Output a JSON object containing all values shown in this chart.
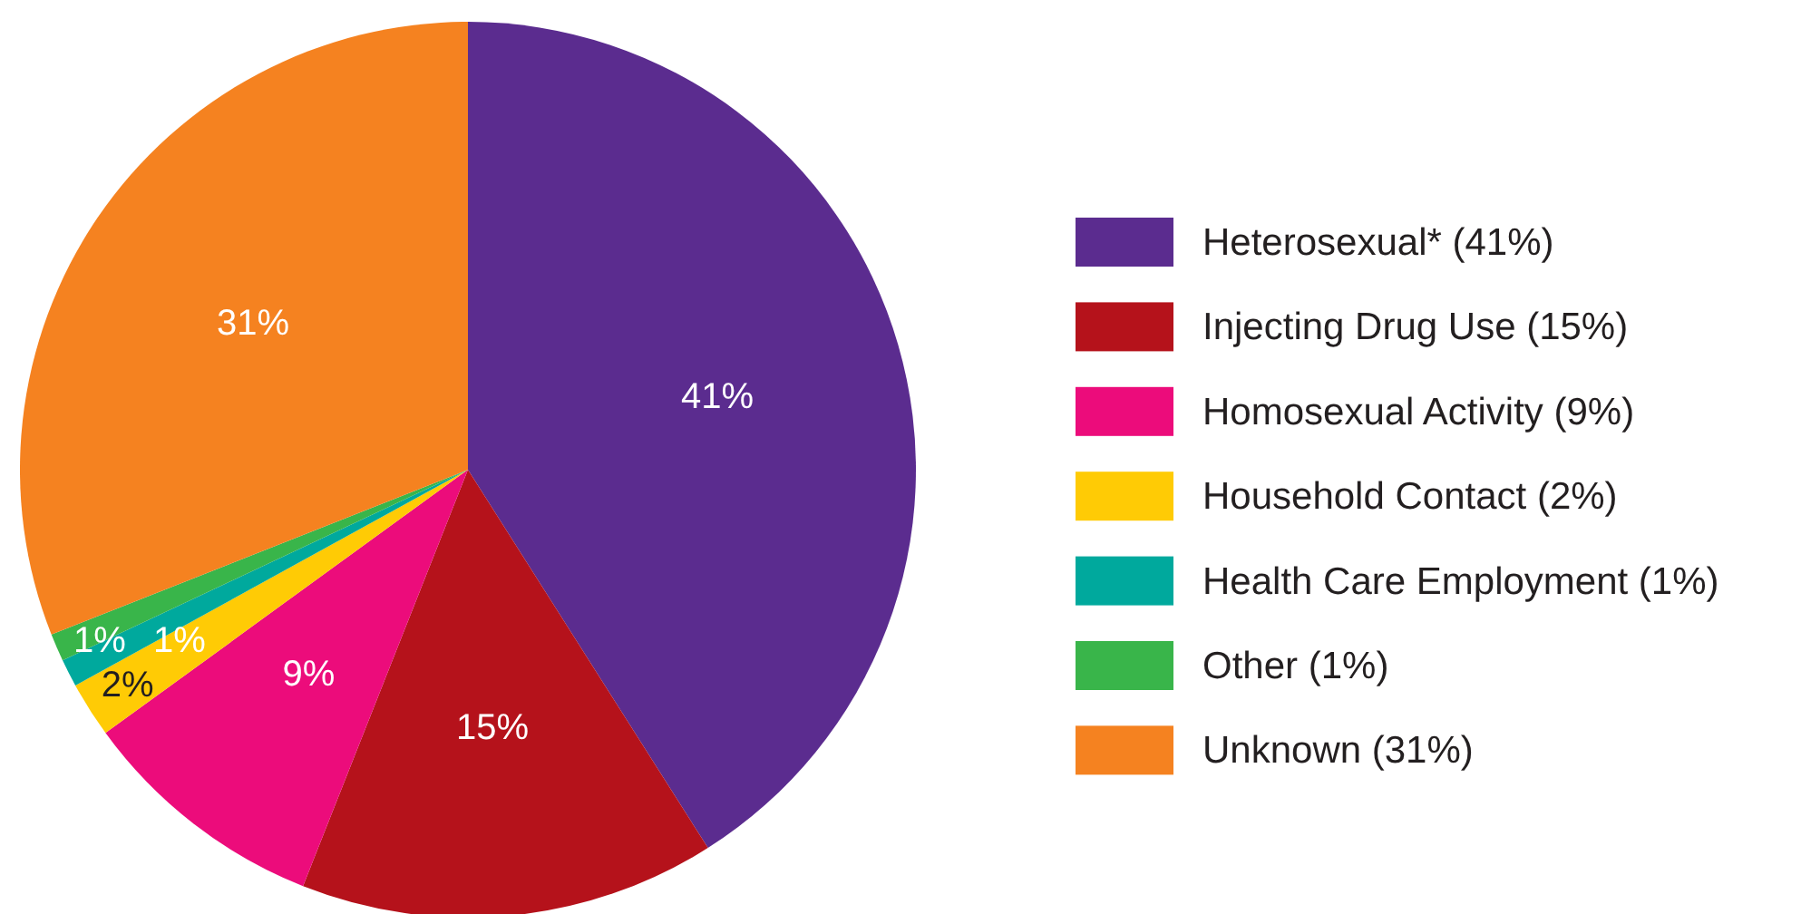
{
  "chart_data": {
    "type": "pie",
    "categories": [
      "Heterosexual* (41%)",
      "Injecting Drug Use (15%)",
      "Homosexual Activity (9%)",
      "Household Contact (2%)",
      "Health Care Employment (1%)",
      "Other (1%)",
      "Unknown (31%)"
    ],
    "values": [
      41,
      15,
      9,
      2,
      1,
      1,
      31
    ],
    "colors": [
      "#5b2c8f",
      "#b5121b",
      "#ec0c7b",
      "#ffcb05",
      "#00a99d",
      "#39b54a",
      "#f58220"
    ],
    "value_labels": [
      "41%",
      "15%",
      "9%",
      "2%",
      "1%",
      "1%",
      "31%"
    ],
    "legend": "right"
  }
}
